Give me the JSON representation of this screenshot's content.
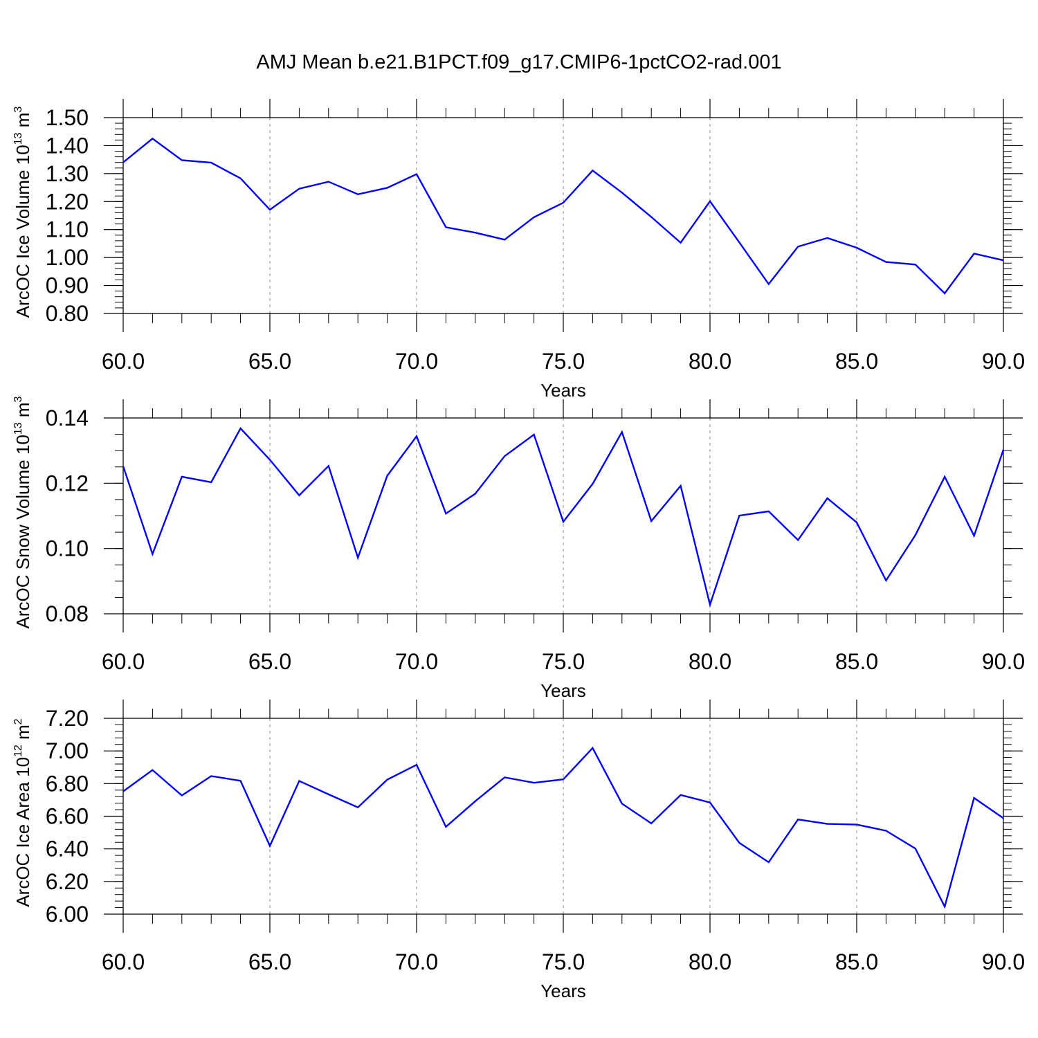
{
  "title": "AMJ Mean b.e21.B1PCT.f09_g17.CMIP6-1pctCO2-rad.001",
  "colors": {
    "line": "#0000ff",
    "axis": "#000000",
    "grid": "#888888",
    "background": "#ffffff"
  },
  "chart_data": [
    {
      "type": "line",
      "ylabel": {
        "main": "ArcOC Ice Volume 10",
        "exp": "13",
        "unit": " m",
        "unit_exp": "3"
      },
      "xlabel": "Years",
      "xlim": [
        60,
        90
      ],
      "ylim": [
        0.8,
        1.5
      ],
      "grid": "vertical dashed at major x ticks",
      "x_ticks": [
        60,
        65,
        70,
        75,
        80,
        85,
        90
      ],
      "x_tick_labels": [
        "60.0",
        "65.0",
        "70.0",
        "75.0",
        "80.0",
        "85.0",
        "90.0"
      ],
      "y_ticks": [
        0.8,
        0.9,
        1.0,
        1.1,
        1.2,
        1.3,
        1.4,
        1.5
      ],
      "y_tick_labels": [
        "0.80",
        "0.90",
        "1.00",
        "1.10",
        "1.20",
        "1.30",
        "1.40",
        "1.50"
      ],
      "y_minor_step": 0.02,
      "x": [
        60,
        61,
        62,
        63,
        64,
        65,
        66,
        67,
        68,
        69,
        70,
        71,
        72,
        73,
        74,
        75,
        76,
        77,
        78,
        79,
        80,
        81,
        82,
        83,
        84,
        85,
        86,
        87,
        88,
        89,
        90
      ],
      "values": [
        1.34,
        1.425,
        1.348,
        1.339,
        1.283,
        1.171,
        1.246,
        1.271,
        1.226,
        1.249,
        1.298,
        1.108,
        1.089,
        1.064,
        1.144,
        1.196,
        1.311,
        1.232,
        1.145,
        1.053,
        1.201,
        1.054,
        0.905,
        1.039,
        1.07,
        1.035,
        0.984,
        0.975,
        0.872,
        1.014,
        0.99
      ]
    },
    {
      "type": "line",
      "ylabel": {
        "main": "ArcOC Snow Volume 10",
        "exp": "13",
        "unit": " m",
        "unit_exp": "3"
      },
      "xlabel": "Years",
      "xlim": [
        60,
        90
      ],
      "ylim": [
        0.08,
        0.14
      ],
      "grid": "vertical dashed at major x ticks",
      "x_ticks": [
        60,
        65,
        70,
        75,
        80,
        85,
        90
      ],
      "x_tick_labels": [
        "60.0",
        "65.0",
        "70.0",
        "75.0",
        "80.0",
        "85.0",
        "90.0"
      ],
      "y_ticks": [
        0.08,
        0.1,
        0.12,
        0.14
      ],
      "y_tick_labels": [
        "0.08",
        "0.10",
        "0.12",
        "0.14"
      ],
      "y_minor_step": 0.005,
      "x": [
        60,
        61,
        62,
        63,
        64,
        65,
        66,
        67,
        68,
        69,
        70,
        71,
        72,
        73,
        74,
        75,
        76,
        77,
        78,
        79,
        80,
        81,
        82,
        83,
        84,
        85,
        86,
        87,
        88,
        89,
        90
      ],
      "values": [
        0.1252,
        0.0983,
        0.122,
        0.1203,
        0.1368,
        0.1272,
        0.1163,
        0.1253,
        0.0972,
        0.1223,
        0.1344,
        0.1107,
        0.1168,
        0.1283,
        0.1349,
        0.1082,
        0.1198,
        0.1357,
        0.1084,
        0.1192,
        0.0828,
        0.1101,
        0.1114,
        0.1026,
        0.1154,
        0.108,
        0.0902,
        0.1041,
        0.122,
        0.1039,
        0.1303
      ]
    },
    {
      "type": "line",
      "ylabel": {
        "main": "ArcOC Ice Area 10",
        "exp": "12",
        "unit": " m",
        "unit_exp": "2"
      },
      "xlabel": "Years",
      "xlim": [
        60,
        90
      ],
      "ylim": [
        6.0,
        7.2
      ],
      "grid": "vertical dashed at major x ticks",
      "x_ticks": [
        60,
        65,
        70,
        75,
        80,
        85,
        90
      ],
      "x_tick_labels": [
        "60.0",
        "65.0",
        "70.0",
        "75.0",
        "80.0",
        "85.0",
        "90.0"
      ],
      "y_ticks": [
        6.0,
        6.2,
        6.4,
        6.6,
        6.8,
        7.0,
        7.2
      ],
      "y_tick_labels": [
        "6.00",
        "6.20",
        "6.40",
        "6.60",
        "6.80",
        "7.00",
        "7.20"
      ],
      "y_minor_step": 0.04,
      "x": [
        60,
        61,
        62,
        63,
        64,
        65,
        66,
        67,
        68,
        69,
        70,
        71,
        72,
        73,
        74,
        75,
        76,
        77,
        78,
        79,
        80,
        81,
        82,
        83,
        84,
        85,
        86,
        87,
        88,
        89,
        90
      ],
      "values": [
        6.752,
        6.883,
        6.727,
        6.846,
        6.817,
        6.418,
        6.816,
        6.734,
        6.654,
        6.824,
        6.915,
        6.535,
        6.692,
        6.838,
        6.805,
        6.826,
        7.018,
        6.677,
        6.556,
        6.73,
        6.684,
        6.437,
        6.318,
        6.58,
        6.553,
        6.549,
        6.511,
        6.402,
        6.046,
        6.712,
        6.588
      ]
    }
  ]
}
